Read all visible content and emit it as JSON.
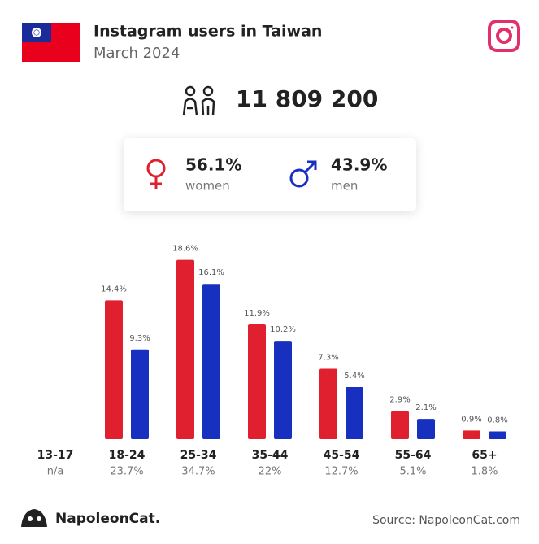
{
  "header": {
    "title": "Instagram users in Taiwan",
    "subtitle": "March 2024"
  },
  "total": "11 809 200",
  "gender": [
    {
      "share": "56.1%"
    },
    {
      "share": "43.9%"
    }
  ],
  "chart_data": {
    "type": "bar",
    "categories": [
      "13-17",
      "18-24",
      "25-34",
      "35-44",
      "45-54",
      "55-64",
      "65+"
    ],
    "totals": [
      "n/a",
      "23.7%",
      "34.7%",
      "22%",
      "12.7%",
      "5.1%",
      "1.8%"
    ],
    "series": [
      {
        "name": "women",
        "color": "#e0202e",
        "values": [
          null,
          14.4,
          18.6,
          11.9,
          7.3,
          2.9,
          0.9
        ],
        "value_labels": [
          null,
          "14.4%",
          "18.6%",
          "11.9%",
          "7.3%",
          "2.9%",
          "0.9%"
        ]
      },
      {
        "name": "men",
        "color": "#1730c0",
        "values": [
          null,
          9.3,
          16.1,
          10.2,
          5.4,
          2.1,
          0.8
        ],
        "value_labels": [
          null,
          "9.3%",
          "16.1%",
          "10.2%",
          "5.4%",
          "2.1%",
          "0.8%"
        ]
      }
    ]
  },
  "footer": {
    "brand": "NapoleonCat.",
    "source": "Source: NapoleonCat.com"
  }
}
